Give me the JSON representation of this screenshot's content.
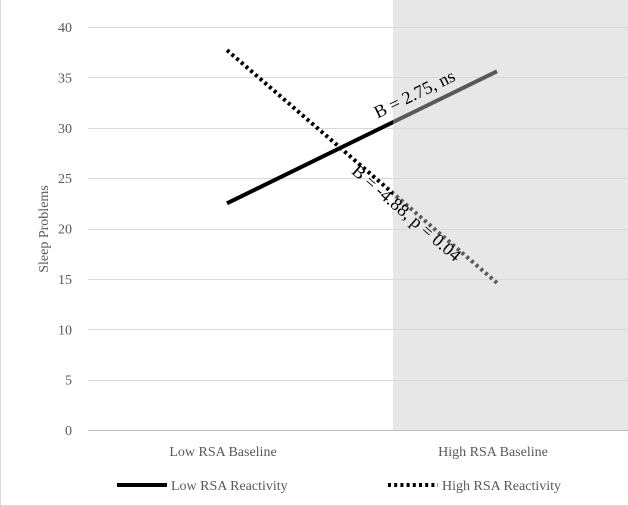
{
  "chart_data": {
    "type": "line",
    "title": "",
    "xlabel": "",
    "ylabel": "Sleep Problems",
    "categories": [
      "Low RSA Baseline",
      "High RSA Baseline"
    ],
    "ylim": [
      0,
      40
    ],
    "yticks": [
      0,
      5,
      10,
      15,
      20,
      25,
      30,
      35,
      40
    ],
    "grid": true,
    "legend_position": "bottom",
    "highlight_region": {
      "from_category": "High RSA Baseline",
      "color": "#e7e7e7"
    },
    "series": [
      {
        "name": "Low RSA Reactivity",
        "values": [
          22.5,
          35.6
        ],
        "style": "solid",
        "color": "#000000",
        "highlight_color": "#595959"
      },
      {
        "name": "High RSA Reactivity",
        "values": [
          37.7,
          14.6
        ],
        "style": "dotted",
        "color": "#000000",
        "highlight_color": "#595959"
      }
    ],
    "annotations": [
      {
        "series": 0,
        "text": "B = 2.75, ns"
      },
      {
        "series": 1,
        "text": "B = -4.88, p = 0.04"
      }
    ]
  }
}
